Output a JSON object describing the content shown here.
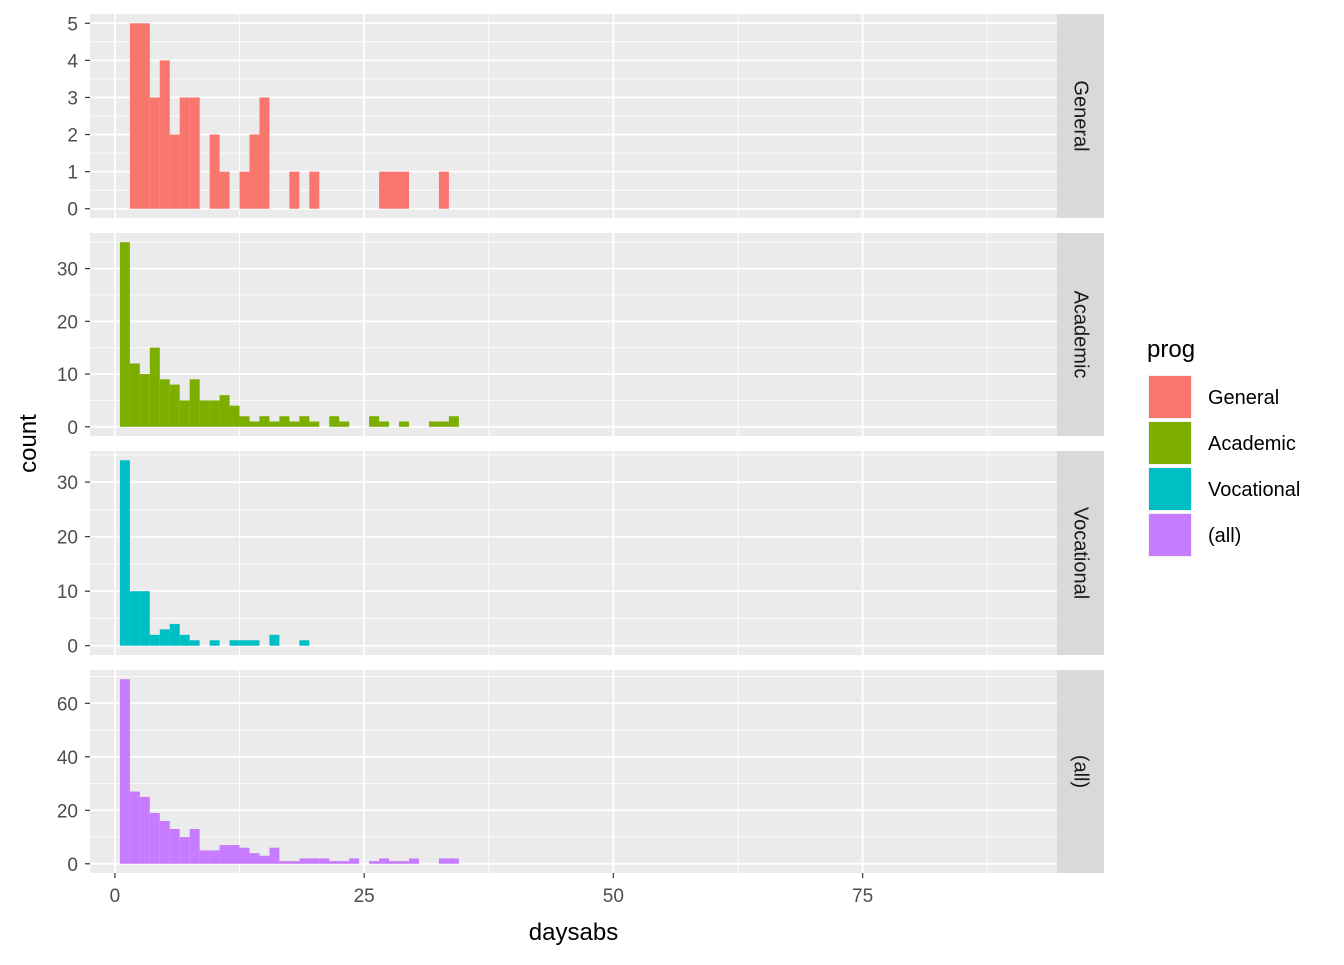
{
  "chart_data": {
    "type": "bar",
    "subtype": "faceted-histogram",
    "xlabel": "daysabs",
    "ylabel": "count",
    "xlim": [
      -2.5,
      94.5
    ],
    "x_ticks": [
      0,
      25,
      50,
      75
    ],
    "binwidth": 1,
    "grid": true,
    "legend": {
      "title": "prog",
      "position": "right",
      "entries": [
        {
          "label": "General",
          "color": "#F8766D"
        },
        {
          "label": "Academic",
          "color": "#7CAE00"
        },
        {
          "label": "Vocational",
          "color": "#00BFC4"
        },
        {
          "label": "(all)",
          "color": "#C77CFF"
        }
      ]
    },
    "facets": [
      {
        "strip": "General",
        "color": "#F8766D",
        "ylim": [
          -0.25,
          5.25
        ],
        "y_ticks": [
          0,
          1,
          2,
          3,
          4,
          5
        ],
        "bins": [
          [
            2,
            5
          ],
          [
            3,
            5
          ],
          [
            4,
            3
          ],
          [
            5,
            4
          ],
          [
            6,
            2
          ],
          [
            7,
            3
          ],
          [
            8,
            3
          ],
          [
            10,
            2
          ],
          [
            11,
            1
          ],
          [
            13,
            1
          ],
          [
            14,
            2
          ],
          [
            15,
            3
          ],
          [
            18,
            1
          ],
          [
            20,
            1
          ],
          [
            27,
            1
          ],
          [
            28,
            1
          ],
          [
            29,
            1
          ],
          [
            33,
            1
          ]
        ]
      },
      {
        "strip": "Academic",
        "color": "#7CAE00",
        "ylim": [
          -1.75,
          36.75
        ],
        "y_ticks": [
          0,
          10,
          20,
          30
        ],
        "bins": [
          [
            1,
            35
          ],
          [
            2,
            12
          ],
          [
            3,
            10
          ],
          [
            4,
            15
          ],
          [
            5,
            9
          ],
          [
            6,
            8
          ],
          [
            7,
            5
          ],
          [
            8,
            9
          ],
          [
            9,
            5
          ],
          [
            10,
            5
          ],
          [
            11,
            6
          ],
          [
            12,
            4
          ],
          [
            13,
            2
          ],
          [
            14,
            1
          ],
          [
            15,
            2
          ],
          [
            16,
            1
          ],
          [
            17,
            2
          ],
          [
            18,
            1
          ],
          [
            19,
            2
          ],
          [
            20,
            1
          ],
          [
            22,
            2
          ],
          [
            23,
            1
          ],
          [
            26,
            2
          ],
          [
            27,
            1
          ],
          [
            29,
            1
          ],
          [
            32,
            1
          ],
          [
            33,
            1
          ],
          [
            34,
            2
          ]
        ]
      },
      {
        "strip": "Vocational",
        "color": "#00BFC4",
        "ylim": [
          -1.7,
          35.7
        ],
        "y_ticks": [
          0,
          10,
          20,
          30
        ],
        "bins": [
          [
            1,
            34
          ],
          [
            2,
            10
          ],
          [
            3,
            10
          ],
          [
            4,
            2
          ],
          [
            5,
            3
          ],
          [
            6,
            4
          ],
          [
            7,
            2
          ],
          [
            8,
            1
          ],
          [
            10,
            1
          ],
          [
            12,
            1
          ],
          [
            13,
            1
          ],
          [
            14,
            1
          ],
          [
            16,
            2
          ],
          [
            19,
            1
          ]
        ]
      },
      {
        "strip": "(all)",
        "color": "#C77CFF",
        "ylim": [
          -3.45,
          72.45
        ],
        "y_ticks": [
          0,
          20,
          40,
          60
        ],
        "bins": [
          [
            1,
            69
          ],
          [
            2,
            27
          ],
          [
            3,
            25
          ],
          [
            4,
            19
          ],
          [
            5,
            16
          ],
          [
            6,
            13
          ],
          [
            7,
            10
          ],
          [
            8,
            13
          ],
          [
            9,
            5
          ],
          [
            10,
            5
          ],
          [
            11,
            7
          ],
          [
            12,
            7
          ],
          [
            13,
            6
          ],
          [
            14,
            4
          ],
          [
            15,
            3
          ],
          [
            16,
            6
          ],
          [
            17,
            1
          ],
          [
            18,
            1
          ],
          [
            19,
            2
          ],
          [
            20,
            2
          ],
          [
            21,
            2
          ],
          [
            22,
            1
          ],
          [
            23,
            1
          ],
          [
            24,
            2
          ],
          [
            26,
            1
          ],
          [
            27,
            2
          ],
          [
            28,
            1
          ],
          [
            29,
            1
          ],
          [
            30,
            2
          ],
          [
            33,
            2
          ],
          [
            34,
            2
          ]
        ]
      }
    ]
  }
}
